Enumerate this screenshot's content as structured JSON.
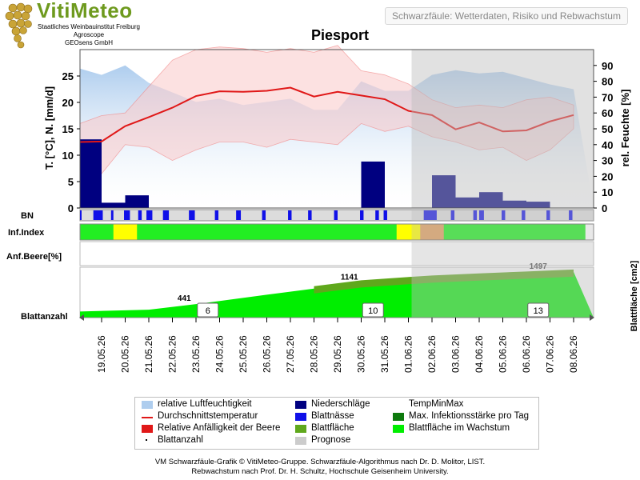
{
  "header": {
    "logo_text": "VitiMeteo",
    "org_line1": "Staatliches Weinbauinstitut Freiburg",
    "org_line2": "Agroscope",
    "org_line3": "GEOsens GmbH",
    "subtitle": "Schwarzfäule: Wetterdaten, Risiko und Rebwachstum",
    "title": "Piesport"
  },
  "colors": {
    "humidity": "#aecdee",
    "temp_line": "#e01818",
    "temp_band": "#f9c8c8",
    "precip": "#000080",
    "leaf_wet": "#1010e8",
    "max_infection": "#0e7a0e",
    "relative_susceptibility": "#e01818",
    "leaf_area": "#5fa81c",
    "leaf_area_growing": "#00ee00",
    "forecast": "#cccccc",
    "risk_low": "#22ee22",
    "risk_mid": "#ffff00",
    "risk_high": "#e0a060",
    "risk_mid_forecast": "#e8e070"
  },
  "chart_data": {
    "type": "line",
    "station": "Piesport",
    "dates": [
      "19.05.26",
      "20.05.26",
      "21.05.26",
      "22.05.26",
      "23.05.26",
      "24.05.26",
      "25.05.26",
      "26.05.26",
      "27.05.26",
      "28.05.26",
      "29.05.26",
      "30.05.26",
      "31.05.26",
      "01.06.26",
      "02.06.26",
      "03.06.26",
      "04.06.26",
      "05.06.26",
      "06.06.26",
      "07.06.26",
      "08.06.26"
    ],
    "forecast_start": "01.06.26",
    "y_left": {
      "label": "T. [°C], N. [mm/d]",
      "range": [
        0,
        30
      ],
      "ticks": [
        0,
        5,
        10,
        15,
        20,
        25
      ]
    },
    "y_right": {
      "label": "rel. Feuchte [%]",
      "range": [
        0,
        100
      ],
      "ticks": [
        0,
        10,
        20,
        30,
        40,
        50,
        60,
        70,
        80,
        90
      ]
    },
    "y_leaf": {
      "label": "Blattfläche [cm2]"
    },
    "row_labels": {
      "bn": "BN",
      "inf": "Inf.Index",
      "anf": "Anf.Beere[%]",
      "blatt": "Blattanzahl"
    },
    "temperature_mean": [
      {
        "x": "18.05.26",
        "y": 12.5
      },
      {
        "x": "19.05.26",
        "y": 12.6
      },
      {
        "x": "20.05.26",
        "y": 15.5
      },
      {
        "x": "21.05.26",
        "y": 17.2
      },
      {
        "x": "22.05.26",
        "y": 19.0
      },
      {
        "x": "23.05.26",
        "y": 21.2
      },
      {
        "x": "24.05.26",
        "y": 22.1
      },
      {
        "x": "25.05.26",
        "y": 22.0
      },
      {
        "x": "26.05.26",
        "y": 22.2
      },
      {
        "x": "27.05.26",
        "y": 22.8
      },
      {
        "x": "28.05.26",
        "y": 21.1
      },
      {
        "x": "29.05.26",
        "y": 22.0
      },
      {
        "x": "30.05.26",
        "y": 21.3
      },
      {
        "x": "31.05.26",
        "y": 20.6
      },
      {
        "x": "01.06.26",
        "y": 18.4
      },
      {
        "x": "02.06.26",
        "y": 17.6
      },
      {
        "x": "03.06.26",
        "y": 14.9
      },
      {
        "x": "04.06.26",
        "y": 16.2
      },
      {
        "x": "05.06.26",
        "y": 14.5
      },
      {
        "x": "06.06.26",
        "y": 14.7
      },
      {
        "x": "07.06.26",
        "y": 16.4
      },
      {
        "x": "08.06.26",
        "y": 17.6
      }
    ],
    "temperature_max": [
      {
        "x": "18.05.26",
        "y": 16.0
      },
      {
        "x": "19.05.26",
        "y": 17.5
      },
      {
        "x": "20.05.26",
        "y": 18.0
      },
      {
        "x": "21.05.26",
        "y": 23.0
      },
      {
        "x": "22.05.26",
        "y": 28.0
      },
      {
        "x": "23.05.26",
        "y": 30.0
      },
      {
        "x": "24.05.26",
        "y": 30.5
      },
      {
        "x": "25.05.26",
        "y": 30.2
      },
      {
        "x": "26.05.26",
        "y": 29.5
      },
      {
        "x": "27.05.26",
        "y": 30.2
      },
      {
        "x": "28.05.26",
        "y": 29.5
      },
      {
        "x": "29.05.26",
        "y": 30.8
      },
      {
        "x": "30.05.26",
        "y": 26.0
      },
      {
        "x": "31.05.26",
        "y": 25.2
      },
      {
        "x": "01.06.26",
        "y": 23.5
      },
      {
        "x": "02.06.26",
        "y": 20.5
      },
      {
        "x": "03.06.26",
        "y": 19.0
      },
      {
        "x": "04.06.26",
        "y": 19.5
      },
      {
        "x": "05.06.26",
        "y": 19.0
      },
      {
        "x": "06.06.26",
        "y": 20.5
      },
      {
        "x": "07.06.26",
        "y": 21.0
      },
      {
        "x": "08.06.26",
        "y": 19.5
      }
    ],
    "temperature_min": [
      {
        "x": "18.05.26",
        "y": 10.5
      },
      {
        "x": "19.05.26",
        "y": 6.5
      },
      {
        "x": "20.05.26",
        "y": 12.0
      },
      {
        "x": "21.05.26",
        "y": 11.5
      },
      {
        "x": "22.05.26",
        "y": 9.0
      },
      {
        "x": "23.05.26",
        "y": 11.0
      },
      {
        "x": "24.05.26",
        "y": 12.5
      },
      {
        "x": "25.05.26",
        "y": 12.5
      },
      {
        "x": "26.05.26",
        "y": 11.5
      },
      {
        "x": "27.05.26",
        "y": 13.0
      },
      {
        "x": "28.05.26",
        "y": 12.5
      },
      {
        "x": "29.05.26",
        "y": 12.0
      },
      {
        "x": "30.05.26",
        "y": 16.0
      },
      {
        "x": "31.05.26",
        "y": 14.5
      },
      {
        "x": "01.06.26",
        "y": 15.5
      },
      {
        "x": "02.06.26",
        "y": 13.5
      },
      {
        "x": "03.06.26",
        "y": 12.5
      },
      {
        "x": "04.06.26",
        "y": 11.0
      },
      {
        "x": "05.06.26",
        "y": 11.5
      },
      {
        "x": "06.06.26",
        "y": 9.0
      },
      {
        "x": "07.06.26",
        "y": 11.0
      },
      {
        "x": "08.06.26",
        "y": 15.0
      }
    ],
    "relative_humidity": [
      {
        "x": "18.05.26",
        "y": 88
      },
      {
        "x": "19.05.26",
        "y": 84
      },
      {
        "x": "20.05.26",
        "y": 90
      },
      {
        "x": "21.05.26",
        "y": 79
      },
      {
        "x": "22.05.26",
        "y": 73
      },
      {
        "x": "23.05.26",
        "y": 67
      },
      {
        "x": "24.05.26",
        "y": 69
      },
      {
        "x": "25.05.26",
        "y": 65
      },
      {
        "x": "26.05.26",
        "y": 67
      },
      {
        "x": "27.05.26",
        "y": 69
      },
      {
        "x": "28.05.26",
        "y": 62
      },
      {
        "x": "29.05.26",
        "y": 62
      },
      {
        "x": "30.05.26",
        "y": 80
      },
      {
        "x": "31.05.26",
        "y": 74
      },
      {
        "x": "01.06.26",
        "y": 74
      },
      {
        "x": "02.06.26",
        "y": 84
      },
      {
        "x": "03.06.26",
        "y": 87
      },
      {
        "x": "04.06.26",
        "y": 85
      },
      {
        "x": "05.06.26",
        "y": 86
      },
      {
        "x": "06.06.26",
        "y": 82
      },
      {
        "x": "07.06.26",
        "y": 78
      },
      {
        "x": "08.06.26",
        "y": 75
      }
    ],
    "precipitation": [
      {
        "from": "18.05.26",
        "to": "19.05.26",
        "y": 13.0
      },
      {
        "from": "19.05.26",
        "to": "20.05.26",
        "y": 1.0
      },
      {
        "from": "20.05.26",
        "to": "21.05.26",
        "y": 2.4
      },
      {
        "from": "30.05.26",
        "to": "31.05.26",
        "y": 8.8
      },
      {
        "from": "02.06.26",
        "to": "03.06.26",
        "y": 6.2
      },
      {
        "from": "03.06.26",
        "to": "04.06.26",
        "y": 2.0
      },
      {
        "from": "04.06.26",
        "to": "05.06.26",
        "y": 3.0
      },
      {
        "from": "05.06.26",
        "to": "06.06.26",
        "y": 1.4
      },
      {
        "from": "06.06.26",
        "to": "07.06.26",
        "y": 1.2
      }
    ],
    "leaf_wetness": [
      [
        "18.05.26",
        0.1,
        0.35
      ],
      [
        "19.05.26",
        0.15,
        0.55
      ],
      [
        "19.05.26",
        0.9,
        1.0
      ],
      [
        "20.05.26",
        0.45,
        0.7
      ],
      [
        "21.05.26",
        0.05,
        0.2
      ],
      [
        "21.05.26",
        0.4,
        0.65
      ],
      [
        "22.05.26",
        0.1,
        0.35
      ],
      [
        "23.05.26",
        0.2,
        0.45
      ],
      [
        "24.05.26",
        0.3,
        0.45
      ],
      [
        "25.05.26",
        0.2,
        0.4
      ],
      [
        "26.05.26",
        0.3,
        0.45
      ],
      [
        "27.05.26",
        0.4,
        0.55
      ],
      [
        "28.05.26",
        0.25,
        0.4
      ],
      [
        "29.05.26",
        0.35,
        0.5
      ],
      [
        "30.05.26",
        0.45,
        0.6
      ],
      [
        "31.05.26",
        0.1,
        0.25
      ],
      [
        "31.05.26",
        0.45,
        0.6
      ],
      [
        "02.06.26",
        0.15,
        0.7
      ],
      [
        "03.06.26",
        0.3,
        0.45
      ],
      [
        "04.06.26",
        0.25,
        0.4
      ],
      [
        "04.06.26",
        0.5,
        0.7
      ],
      [
        "05.06.26",
        0.45,
        0.6
      ],
      [
        "06.06.26",
        0.3,
        0.45
      ],
      [
        "07.06.26",
        0.35,
        0.5
      ],
      [
        "08.06.26",
        0.3,
        0.45
      ]
    ],
    "infection_index": [
      {
        "from": "18.05.26",
        "to": "20.05.26",
        "level": "low"
      },
      {
        "from": "20.05.26",
        "to": "21.05.26",
        "level": "mid"
      },
      {
        "from": "21.05.26",
        "to": "01.06.26",
        "level": "low"
      },
      {
        "from": "01.06.26",
        "to": "02.06.26",
        "level": "mid"
      },
      {
        "from": "02.06.26",
        "to": "02.06.26",
        "level": "mid"
      },
      {
        "from": "02.06.26",
        "to": "03.06.26",
        "level": "high"
      },
      {
        "from": "03.06.26",
        "to": "08.06.26",
        "level": "low"
      }
    ],
    "leaf_area": [
      {
        "x": "18.05.26",
        "y": 200
      },
      {
        "x": "21.05.26",
        "y": 260
      },
      {
        "x": "23.05.26",
        "y": 441
      },
      {
        "x": "26.05.26",
        "y": 750
      },
      {
        "x": "28.05.26",
        "y": 950
      },
      {
        "x": "30.05.26",
        "y": 1141
      },
      {
        "x": "01.06.26",
        "y": 1250
      },
      {
        "x": "02.06.26",
        "y": 1300
      },
      {
        "x": "04.06.26",
        "y": 1370
      },
      {
        "x": "06.06.26",
        "y": 1430
      },
      {
        "x": "08.06.26",
        "y": 1497
      }
    ],
    "leaf_area_range": [
      0,
      1650
    ],
    "leaf_area_labels": [
      {
        "x": "22.05.26",
        "value": "441"
      },
      {
        "x": "29.05.26",
        "value": "1141"
      },
      {
        "x": "06.06.26",
        "value": "1497"
      }
    ],
    "leaf_counts": [
      {
        "x": "23.05.26",
        "value": "6"
      },
      {
        "x": "30.05.26",
        "value": "10"
      },
      {
        "x": "06.06.26",
        "value": "13"
      }
    ]
  },
  "legend": [
    {
      "label": "relative Luftfeuchtigkeit",
      "swatch": "humidity"
    },
    {
      "label": "Niederschläge",
      "swatch": "precip"
    },
    {
      "label": "TempMinMax",
      "swatch": "none"
    },
    {
      "label": "Durchschnittstemperatur",
      "swatch": "temp_line"
    },
    {
      "label": "Blattnässe",
      "swatch": "leaf_wet"
    },
    {
      "label": "Max. Infektionsstärke pro Tag",
      "swatch": "max_infection"
    },
    {
      "label": "Relative Anfälligkeit der Beere",
      "swatch": "relative_susceptibility"
    },
    {
      "label": "Blattfläche",
      "swatch": "leaf_area"
    },
    {
      "label": "Blattfläche im Wachstum",
      "swatch": "leaf_area_growing"
    },
    {
      "label": "Blattanzahl",
      "swatch": "dot"
    },
    {
      "label": "Prognose",
      "swatch": "forecast"
    }
  ],
  "footer": {
    "line1": "VM Schwarzfäule-Grafik © VitiMeteo-Gruppe. Schwarzfäule-Algorithmus nach Dr. D. Molitor, LIST.",
    "line2": "Rebwachstum nach Prof. Dr. H. Schultz, Hochschule Geisenheim University."
  }
}
